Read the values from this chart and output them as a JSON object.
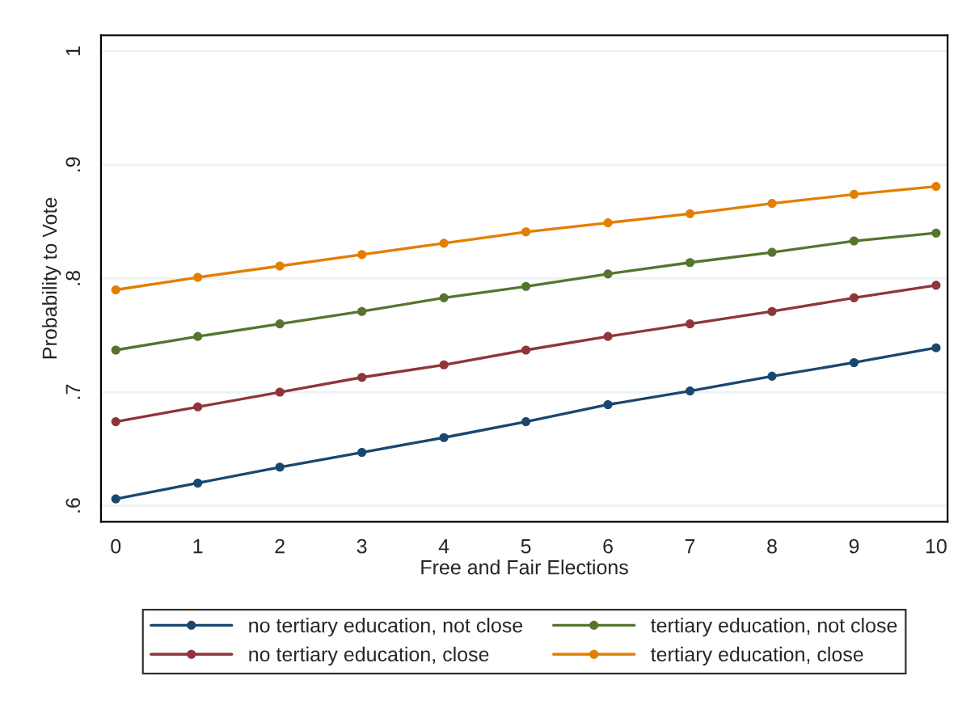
{
  "chart_data": {
    "type": "line",
    "xlabel": "Free and Fair Elections",
    "ylabel": "Probability to Vote",
    "x": [
      0,
      1,
      2,
      3,
      4,
      5,
      6,
      7,
      8,
      9,
      10
    ],
    "series": [
      {
        "name": "no tertiary education, not close",
        "color": "#1a476f",
        "values": [
          0.606,
          0.62,
          0.634,
          0.647,
          0.66,
          0.674,
          0.689,
          0.701,
          0.714,
          0.726,
          0.739
        ]
      },
      {
        "name": "no tertiary education, close",
        "color": "#90353b",
        "values": [
          0.674,
          0.687,
          0.7,
          0.713,
          0.724,
          0.737,
          0.749,
          0.76,
          0.771,
          0.783,
          0.794
        ]
      },
      {
        "name": "tertiary education, not close",
        "color": "#55752f",
        "values": [
          0.737,
          0.749,
          0.76,
          0.771,
          0.783,
          0.793,
          0.804,
          0.814,
          0.823,
          0.833,
          0.84
        ]
      },
      {
        "name": "tertiary education, close",
        "color": "#e37e00",
        "values": [
          0.79,
          0.801,
          0.811,
          0.821,
          0.831,
          0.841,
          0.849,
          0.857,
          0.866,
          0.874,
          0.881
        ]
      }
    ],
    "xlim": [
      -0.18,
      10.14
    ],
    "xticks": [
      0,
      1,
      2,
      3,
      4,
      5,
      6,
      7,
      8,
      9,
      10
    ],
    "ylim": [
      0.586,
      1.014
    ],
    "yticks": [
      {
        "value": 0.6,
        "label": ".6"
      },
      {
        "value": 0.7,
        "label": ".7"
      },
      {
        "value": 0.8,
        "label": ".8"
      },
      {
        "value": 0.9,
        "label": ".9"
      },
      {
        "value": 1,
        "label": "1"
      }
    ],
    "grid": "y",
    "legend": "bottom",
    "marker": "circle",
    "line_style": "solid"
  }
}
